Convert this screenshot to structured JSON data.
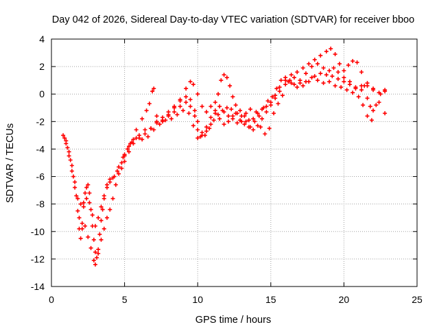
{
  "chart_data": {
    "type": "scatter",
    "title": "Day 042 of 2026, Sidereal Day-to-day VTEC variation (SDTVAR) for receiver bboo",
    "xlabel": "GPS time / hours",
    "ylabel": "SDTVAR / TECUs",
    "xlim": [
      0,
      25
    ],
    "ylim": [
      -14,
      4
    ],
    "xticks": [
      0,
      5,
      10,
      15,
      20,
      25
    ],
    "yticks": [
      -14,
      -12,
      -10,
      -8,
      -6,
      -4,
      -2,
      0,
      2,
      4
    ],
    "grid": true,
    "marker": "+",
    "color": "#ff0000",
    "series": [
      {
        "points": [
          [
            0.8,
            -3.0
          ],
          [
            1.0,
            -3.6
          ],
          [
            1.2,
            -4.5
          ],
          [
            1.4,
            -5.6
          ],
          [
            1.6,
            -6.8
          ],
          [
            1.8,
            -8.5
          ],
          [
            1.9,
            -9.8
          ],
          [
            2.0,
            -10.5
          ],
          [
            2.1,
            -9.8
          ],
          [
            2.2,
            -8.2
          ],
          [
            2.3,
            -7.2
          ],
          [
            2.4,
            -6.8
          ],
          [
            2.5,
            -6.6
          ],
          [
            2.6,
            -7.2
          ],
          [
            2.7,
            -8.4
          ],
          [
            2.8,
            -9.6
          ],
          [
            2.9,
            -10.6
          ],
          [
            3.0,
            -11.5
          ],
          [
            3.1,
            -11.9
          ],
          [
            3.2,
            -11.3
          ],
          [
            3.3,
            -10.2
          ],
          [
            3.4,
            -9.2
          ],
          [
            3.5,
            -8.4
          ],
          [
            3.6,
            -7.6
          ],
          [
            3.8,
            -6.6
          ],
          [
            4.0,
            -6.2
          ],
          [
            4.2,
            -6.1
          ],
          [
            4.5,
            -5.6
          ],
          [
            4.8,
            -5.0
          ],
          [
            5.0,
            -4.5
          ],
          [
            5.3,
            -3.8
          ],
          [
            5.6,
            -3.3
          ],
          [
            6.0,
            -3.0
          ],
          [
            6.4,
            -2.6
          ],
          [
            6.8,
            -2.5
          ],
          [
            7.2,
            -2.1
          ],
          [
            7.6,
            -1.9
          ],
          [
            8.0,
            -1.6
          ],
          [
            8.4,
            -1.3
          ],
          [
            8.8,
            -0.9
          ],
          [
            9.2,
            -0.6
          ],
          [
            9.5,
            -0.9
          ],
          [
            9.8,
            -1.6
          ],
          [
            10.0,
            -2.6
          ],
          [
            10.2,
            -3.1
          ],
          [
            10.5,
            -3.0
          ],
          [
            10.8,
            -2.5
          ],
          [
            11.1,
            -1.9
          ],
          [
            11.4,
            -1.5
          ],
          [
            11.7,
            -1.2
          ],
          [
            12.0,
            -1.0
          ],
          [
            12.3,
            -1.1
          ],
          [
            12.6,
            -1.4
          ],
          [
            12.9,
            -1.9
          ],
          [
            13.2,
            -2.2
          ],
          [
            13.5,
            -2.4
          ],
          [
            13.8,
            -2.6
          ],
          [
            14.1,
            -2.3
          ],
          [
            14.4,
            -1.8
          ],
          [
            14.7,
            -1.3
          ],
          [
            15.0,
            -0.8
          ],
          [
            15.3,
            -0.3
          ],
          [
            15.6,
            0.2
          ],
          [
            16.0,
            0.7
          ],
          [
            16.4,
            0.8
          ],
          [
            16.8,
            0.5
          ],
          [
            17.2,
            0.6
          ],
          [
            17.6,
            0.9
          ],
          [
            18.0,
            1.3
          ],
          [
            18.4,
            1.5
          ],
          [
            18.8,
            1.4
          ],
          [
            19.2,
            1.3
          ],
          [
            19.6,
            1.1
          ],
          [
            20.0,
            0.9
          ],
          [
            20.4,
            0.7
          ],
          [
            20.8,
            0.4
          ],
          [
            21.2,
            0.6
          ],
          [
            21.6,
            0.8
          ],
          [
            22.0,
            0.4
          ],
          [
            22.4,
            0.1
          ],
          [
            22.8,
            0.2
          ]
        ]
      },
      {
        "points": [
          [
            0.9,
            -3.2
          ],
          [
            1.1,
            -3.9
          ],
          [
            1.3,
            -4.8
          ],
          [
            1.5,
            -6.0
          ],
          [
            1.7,
            -7.4
          ],
          [
            1.9,
            -9.0
          ],
          [
            2.1,
            -9.4
          ],
          [
            2.3,
            -9.6
          ],
          [
            2.5,
            -10.4
          ],
          [
            2.7,
            -11.2
          ],
          [
            2.9,
            -12.1
          ],
          [
            3.0,
            -12.4
          ],
          [
            3.2,
            -11.6
          ],
          [
            3.4,
            -10.6
          ],
          [
            3.6,
            -9.8
          ],
          [
            3.8,
            -9.0
          ],
          [
            4.0,
            -8.4
          ],
          [
            4.2,
            -7.6
          ],
          [
            4.4,
            -6.6
          ],
          [
            4.6,
            -5.8
          ],
          [
            4.8,
            -5.4
          ],
          [
            5.0,
            -4.9
          ],
          [
            5.3,
            -4.2
          ],
          [
            5.6,
            -3.6
          ],
          [
            6.0,
            -3.2
          ],
          [
            6.4,
            -2.9
          ],
          [
            6.8,
            -2.5
          ],
          [
            7.2,
            -2.0
          ],
          [
            7.6,
            -1.7
          ],
          [
            8.0,
            -1.3
          ],
          [
            8.4,
            -0.9
          ],
          [
            8.8,
            -0.5
          ],
          [
            9.2,
            -0.2
          ],
          [
            9.5,
            -0.4
          ],
          [
            9.8,
            -1.2
          ],
          [
            10.0,
            -2.0
          ],
          [
            10.3,
            -2.8
          ],
          [
            10.6,
            -2.4
          ],
          [
            10.9,
            -1.7
          ],
          [
            11.2,
            -1.4
          ],
          [
            11.5,
            -1.8
          ],
          [
            11.8,
            -2.2
          ],
          [
            12.1,
            -2.0
          ],
          [
            12.4,
            -1.6
          ],
          [
            12.7,
            -1.4
          ],
          [
            13.0,
            -1.6
          ],
          [
            13.3,
            -2.0
          ],
          [
            13.6,
            -2.4
          ],
          [
            13.9,
            -2.0
          ],
          [
            14.2,
            -1.6
          ],
          [
            14.5,
            -1.0
          ],
          [
            14.8,
            -0.5
          ],
          [
            15.1,
            -0.2
          ],
          [
            15.4,
            0.4
          ],
          [
            15.7,
            1.0
          ],
          [
            16.0,
            1.2
          ],
          [
            16.3,
            1.0
          ],
          [
            16.6,
            0.7
          ],
          [
            17.0,
            1.0
          ],
          [
            17.4,
            1.5
          ],
          [
            17.8,
            2.0
          ],
          [
            18.2,
            2.2
          ],
          [
            18.6,
            1.9
          ],
          [
            19.0,
            1.7
          ],
          [
            19.3,
            1.9
          ],
          [
            19.6,
            1.6
          ],
          [
            20.0,
            1.2
          ],
          [
            20.4,
            0.9
          ],
          [
            20.8,
            0.5
          ],
          [
            21.2,
            0.3
          ],
          [
            21.6,
            0.6
          ],
          [
            22.0,
            0.3
          ],
          [
            22.4,
            -0.6
          ],
          [
            22.8,
            -1.4
          ]
        ]
      },
      {
        "points": [
          [
            1.0,
            -3.4
          ],
          [
            1.2,
            -4.2
          ],
          [
            1.4,
            -5.2
          ],
          [
            1.6,
            -6.4
          ],
          [
            1.8,
            -7.6
          ],
          [
            2.0,
            -8.0
          ],
          [
            2.2,
            -7.9
          ],
          [
            2.4,
            -7.6
          ],
          [
            2.6,
            -7.9
          ],
          [
            2.8,
            -8.8
          ],
          [
            3.0,
            -9.6
          ],
          [
            3.2,
            -9.0
          ],
          [
            3.4,
            -8.2
          ],
          [
            3.6,
            -7.4
          ],
          [
            3.8,
            -6.8
          ],
          [
            4.0,
            -6.4
          ],
          [
            4.3,
            -6.0
          ],
          [
            4.6,
            -5.3
          ],
          [
            4.9,
            -4.6
          ],
          [
            5.2,
            -4.0
          ],
          [
            5.5,
            -3.5
          ],
          [
            5.8,
            -3.2
          ],
          [
            6.2,
            -3.3
          ],
          [
            6.6,
            -3.1
          ],
          [
            7.0,
            -2.6
          ],
          [
            7.4,
            -2.2
          ],
          [
            7.8,
            -1.9
          ],
          [
            8.2,
            -1.8
          ],
          [
            8.6,
            -1.5
          ],
          [
            9.0,
            -1.2
          ],
          [
            9.4,
            -1.4
          ],
          [
            9.7,
            -2.3
          ],
          [
            10.0,
            -3.2
          ],
          [
            10.3,
            -3.0
          ],
          [
            10.6,
            -2.7
          ],
          [
            10.9,
            -2.2
          ],
          [
            11.2,
            -1.2
          ],
          [
            11.4,
            0.0
          ],
          [
            11.6,
            1.0
          ],
          [
            11.8,
            1.4
          ],
          [
            12.0,
            1.2
          ],
          [
            12.2,
            0.6
          ],
          [
            12.4,
            -0.2
          ],
          [
            12.6,
            -0.8
          ],
          [
            12.9,
            -1.2
          ],
          [
            13.2,
            -1.6
          ],
          [
            13.5,
            -1.9
          ],
          [
            13.8,
            -1.8
          ],
          [
            14.1,
            -1.4
          ],
          [
            14.4,
            -1.1
          ],
          [
            14.7,
            -0.9
          ],
          [
            15.0,
            -0.6
          ],
          [
            15.3,
            -0.1
          ],
          [
            15.6,
            0.5
          ],
          [
            16.0,
            1.0
          ],
          [
            16.4,
            1.4
          ],
          [
            16.8,
            1.6
          ],
          [
            17.2,
            1.9
          ],
          [
            17.6,
            2.2
          ],
          [
            18.0,
            2.5
          ],
          [
            18.4,
            2.8
          ],
          [
            18.8,
            3.1
          ],
          [
            19.1,
            3.3
          ],
          [
            19.4,
            2.9
          ],
          [
            19.7,
            2.2
          ],
          [
            20.0,
            1.7
          ],
          [
            20.3,
            2.1
          ],
          [
            20.6,
            2.4
          ],
          [
            20.9,
            2.3
          ],
          [
            21.2,
            1.6
          ],
          [
            21.4,
            0.6
          ],
          [
            21.6,
            -0.3
          ],
          [
            21.8,
            -0.9
          ],
          [
            22.0,
            -1.2
          ],
          [
            22.2,
            -0.8
          ],
          [
            22.5,
            0.0
          ],
          [
            22.8,
            0.3
          ]
        ]
      },
      {
        "points": [
          [
            5.0,
            -4.4
          ],
          [
            5.4,
            -3.6
          ],
          [
            5.8,
            -2.6
          ],
          [
            6.2,
            -1.8
          ],
          [
            6.5,
            -1.2
          ],
          [
            6.7,
            -0.7
          ],
          [
            6.9,
            0.2
          ],
          [
            7.0,
            0.4
          ],
          [
            7.2,
            -1.6
          ],
          [
            7.6,
            -2.0
          ],
          [
            8.0,
            -1.5
          ],
          [
            8.4,
            -1.0
          ],
          [
            8.8,
            -0.4
          ],
          [
            9.2,
            0.4
          ],
          [
            9.5,
            0.9
          ],
          [
            9.7,
            0.7
          ],
          [
            10.0,
            0.0
          ],
          [
            10.3,
            -0.9
          ],
          [
            10.6,
            -1.3
          ],
          [
            10.9,
            -0.9
          ],
          [
            11.2,
            -0.6
          ],
          [
            11.5,
            -0.9
          ],
          [
            11.8,
            -1.3
          ],
          [
            12.1,
            -1.6
          ],
          [
            12.4,
            -1.8
          ],
          [
            12.7,
            -2.1
          ],
          [
            13.0,
            -2.0
          ],
          [
            13.3,
            -1.4
          ],
          [
            13.6,
            -1.1
          ],
          [
            14.0,
            -1.3
          ],
          [
            14.3,
            -2.4
          ],
          [
            14.6,
            -2.9
          ],
          [
            14.9,
            -2.5
          ],
          [
            15.2,
            -1.4
          ],
          [
            15.5,
            -0.7
          ],
          [
            15.8,
            -0.1
          ],
          [
            16.2,
            0.9
          ],
          [
            16.6,
            1.2
          ],
          [
            17.0,
            0.8
          ],
          [
            17.4,
            0.9
          ],
          [
            17.8,
            1.2
          ],
          [
            18.2,
            1.0
          ],
          [
            18.6,
            0.8
          ],
          [
            19.0,
            0.9
          ],
          [
            19.4,
            0.6
          ],
          [
            19.8,
            0.5
          ],
          [
            20.2,
            0.3
          ],
          [
            20.6,
            0.1
          ],
          [
            21.0,
            -0.2
          ],
          [
            21.3,
            -0.8
          ],
          [
            21.6,
            -1.6
          ],
          [
            21.9,
            -1.9
          ]
        ]
      }
    ]
  }
}
